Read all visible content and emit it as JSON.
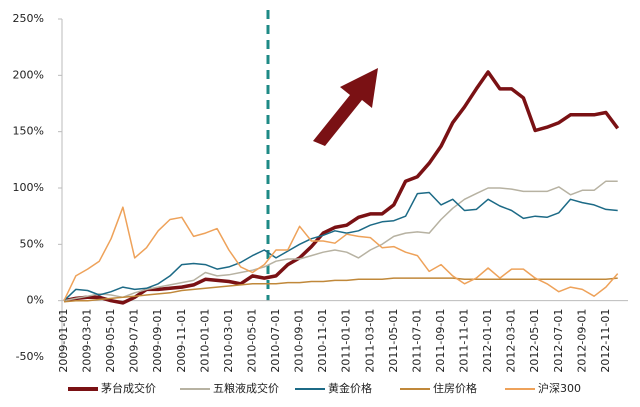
{
  "chart_data": {
    "type": "line",
    "categories": [
      "2009-01-01",
      null,
      "2009-03-01",
      null,
      "2009-05-01",
      null,
      "2009-07-01",
      null,
      "2009-09-01",
      null,
      "2009-11-01",
      null,
      "2010-01-01",
      null,
      "2010-03-01",
      null,
      "2010-05-01",
      null,
      "2010-07-01",
      null,
      "2010-09-01",
      null,
      "2010-11-01",
      null,
      "2011-01-01",
      null,
      "2011-03-01",
      null,
      "2011-05-01",
      null,
      "2011-07-01",
      null,
      "2011-09-01",
      null,
      "2011-11-01",
      null,
      "2012-01-01",
      null,
      "2012-03-01",
      null,
      "2012-05-01",
      null,
      "2012-07-01",
      null,
      "2012-09-01",
      null,
      "2012-11-01",
      null
    ],
    "series": [
      {
        "name": "茅台成交价",
        "color": "#7a1114",
        "values": [
          0,
          2,
          3,
          3,
          0,
          -2,
          3,
          10,
          10,
          11,
          12,
          14,
          19,
          18,
          17,
          15,
          22,
          20,
          22,
          32,
          38,
          48,
          60,
          65,
          67,
          74,
          77,
          77,
          85,
          106,
          110,
          122,
          137,
          158,
          172,
          188,
          203,
          188,
          188,
          180,
          151,
          154,
          158,
          165,
          165,
          165,
          167,
          153
        ]
      },
      {
        "name": "五粮液成交价",
        "color": "#b7b2a2",
        "values": [
          0,
          2,
          4,
          6,
          5,
          3,
          7,
          10,
          12,
          14,
          16,
          18,
          25,
          22,
          23,
          25,
          27,
          30,
          35,
          37,
          37,
          40,
          43,
          45,
          43,
          38,
          45,
          50,
          57,
          60,
          61,
          60,
          72,
          82,
          90,
          95,
          100,
          100,
          99,
          97,
          97,
          97,
          101,
          94,
          98,
          98,
          106,
          106
        ]
      },
      {
        "name": "黄金价格",
        "color": "#1c6a86",
        "values": [
          0,
          10,
          9,
          5,
          8,
          12,
          10,
          11,
          15,
          22,
          32,
          33,
          32,
          28,
          30,
          34,
          40,
          45,
          38,
          44,
          50,
          55,
          58,
          62,
          60,
          62,
          67,
          70,
          71,
          75,
          95,
          96,
          85,
          90,
          80,
          81,
          90,
          84,
          80,
          73,
          75,
          74,
          78,
          90,
          87,
          85,
          81,
          80
        ]
      },
      {
        "name": "住房价格",
        "color": "#c0883a",
        "values": [
          -1,
          0,
          0,
          1,
          2,
          3,
          4,
          5,
          6,
          7,
          9,
          10,
          11,
          12,
          13,
          14,
          15,
          15,
          15,
          16,
          16,
          17,
          17,
          18,
          18,
          19,
          19,
          19,
          20,
          20,
          20,
          20,
          20,
          20,
          19,
          19,
          19,
          19,
          19,
          19,
          19,
          19,
          19,
          19,
          19,
          19,
          19,
          20
        ]
      },
      {
        "name": "沪深300",
        "color": "#eea25a",
        "values": [
          0,
          22,
          28,
          35,
          55,
          83,
          38,
          47,
          62,
          72,
          74,
          57,
          60,
          64,
          45,
          30,
          25,
          32,
          45,
          45,
          66,
          53,
          53,
          51,
          59,
          57,
          56,
          47,
          48,
          43,
          40,
          26,
          32,
          22,
          15,
          20,
          29,
          20,
          28,
          28,
          20,
          15,
          8,
          12,
          10,
          4,
          12,
          24
        ]
      }
    ],
    "ylim": [
      -50,
      250
    ],
    "yticks": [
      {
        "value": -50,
        "label": "-50%"
      },
      {
        "value": 0,
        "label": "0%"
      },
      {
        "value": 50,
        "label": "50%"
      },
      {
        "value": 100,
        "label": "100%"
      },
      {
        "value": 150,
        "label": "150%"
      },
      {
        "value": 200,
        "label": "200%"
      },
      {
        "value": 250,
        "label": "250%"
      }
    ],
    "legend": "bottom"
  }
}
